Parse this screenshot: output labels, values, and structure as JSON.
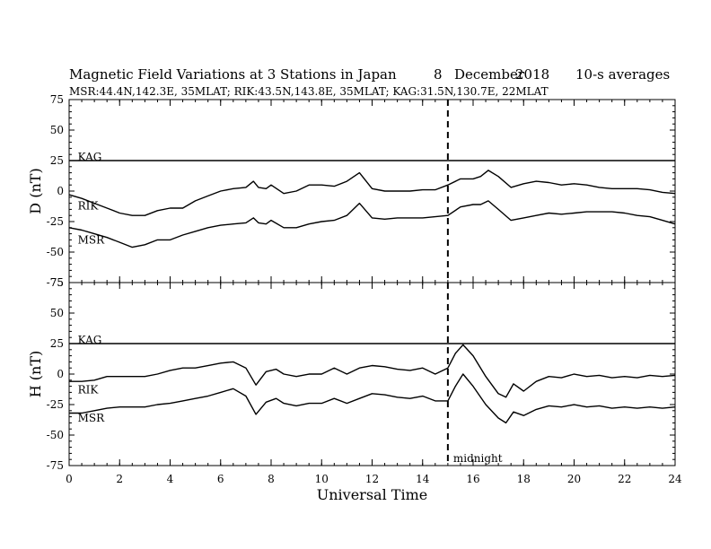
{
  "header": {
    "title": "Magnetic Field Variations at 3 Stations in Japan",
    "day": "8",
    "month": "December",
    "year": "2018",
    "averaging": "10-s averages",
    "stations_line": "MSR:44.4N,142.3E, 35MLAT;  RIK:43.5N,143.8E, 35MLAT;  KAG:31.5N,130.7E, 22MLAT"
  },
  "chart_data": [
    {
      "type": "line",
      "panel": "top",
      "ylabel": "D (nT)",
      "xlabel": "",
      "xlim": [
        0,
        24
      ],
      "ylim": [
        -75,
        75
      ],
      "xticks": [
        "0",
        "2",
        "4",
        "6",
        "8",
        "10",
        "12",
        "14",
        "16",
        "18",
        "20",
        "22",
        "24"
      ],
      "yticks": [
        "75",
        "50",
        "25",
        "0",
        "-25",
        "-50",
        "-75"
      ],
      "grid": false,
      "marker": {
        "x": 15,
        "style": "dashed"
      },
      "series": [
        {
          "name": "KAG",
          "label_x": 0.2,
          "label_y": 28,
          "x": [
            0,
            4,
            8,
            10,
            12,
            14,
            16,
            18,
            20,
            22,
            24
          ],
          "values": [
            25,
            25,
            25,
            25,
            25,
            25,
            25,
            25,
            25,
            25,
            25
          ]
        },
        {
          "name": "RIK",
          "label_x": 0.2,
          "label_y": -12,
          "x": [
            0,
            0.5,
            1,
            1.5,
            2,
            2.5,
            3,
            3.5,
            4,
            4.5,
            5,
            5.5,
            6,
            6.5,
            7,
            7.3,
            7.5,
            7.8,
            8,
            8.5,
            9,
            9.5,
            10,
            10.5,
            11,
            11.5,
            12,
            12.5,
            13,
            13.5,
            14,
            14.5,
            15,
            15.5,
            16,
            16.3,
            16.6,
            17,
            17.5,
            18,
            18.5,
            19,
            19.5,
            20,
            20.5,
            21,
            21.5,
            22,
            22.5,
            23,
            23.5,
            24
          ],
          "values": [
            -3,
            -6,
            -10,
            -14,
            -18,
            -20,
            -20,
            -16,
            -14,
            -14,
            -8,
            -4,
            0,
            2,
            3,
            8,
            3,
            2,
            5,
            -2,
            0,
            5,
            5,
            4,
            8,
            15,
            2,
            0,
            0,
            0,
            1,
            1,
            5,
            10,
            10,
            12,
            17,
            12,
            3,
            6,
            8,
            7,
            5,
            6,
            5,
            3,
            2,
            2,
            2,
            1,
            -1,
            -2
          ]
        },
        {
          "name": "MSR",
          "label_x": 0.2,
          "label_y": -40,
          "x": [
            0,
            0.5,
            1,
            1.5,
            2,
            2.5,
            3,
            3.5,
            4,
            4.5,
            5,
            5.5,
            6,
            6.5,
            7,
            7.3,
            7.5,
            7.8,
            8,
            8.5,
            9,
            9.5,
            10,
            10.5,
            11,
            11.5,
            12,
            12.5,
            13,
            13.5,
            14,
            14.5,
            15,
            15.5,
            16,
            16.3,
            16.6,
            17,
            17.5,
            18,
            18.5,
            19,
            19.5,
            20,
            20.5,
            21,
            21.5,
            22,
            22.5,
            23,
            23.5,
            24
          ],
          "values": [
            -30,
            -32,
            -35,
            -38,
            -42,
            -46,
            -44,
            -40,
            -40,
            -36,
            -33,
            -30,
            -28,
            -27,
            -26,
            -22,
            -26,
            -27,
            -24,
            -30,
            -30,
            -27,
            -25,
            -24,
            -20,
            -10,
            -22,
            -23,
            -22,
            -22,
            -22,
            -21,
            -20,
            -13,
            -11,
            -11,
            -8,
            -15,
            -24,
            -22,
            -20,
            -18,
            -19,
            -18,
            -17,
            -17,
            -17,
            -18,
            -20,
            -21,
            -24,
            -27
          ]
        }
      ]
    },
    {
      "type": "line",
      "panel": "bottom",
      "ylabel": "H (nT)",
      "xlabel": "Universal Time",
      "xlim": [
        0,
        24
      ],
      "ylim": [
        -75,
        75
      ],
      "xticks": [
        "0",
        "2",
        "4",
        "6",
        "8",
        "10",
        "12",
        "14",
        "16",
        "18",
        "20",
        "22",
        "24"
      ],
      "yticks": [
        "75",
        "50",
        "25",
        "0",
        "-25",
        "-50",
        "-75"
      ],
      "grid": false,
      "marker": {
        "x": 15,
        "style": "dashed",
        "label": "midnight"
      },
      "series": [
        {
          "name": "KAG",
          "label_x": 0.2,
          "label_y": 28,
          "x": [
            0,
            4,
            8,
            10,
            12,
            14,
            16,
            18,
            20,
            22,
            24
          ],
          "values": [
            25,
            25,
            25,
            25,
            25,
            25,
            25,
            25,
            25,
            25,
            25
          ]
        },
        {
          "name": "RIK",
          "label_x": 0.2,
          "label_y": -13,
          "x": [
            0,
            0.5,
            1,
            1.5,
            2,
            2.5,
            3,
            3.5,
            4,
            4.5,
            5,
            5.5,
            6,
            6.5,
            7,
            7.4,
            7.8,
            8.2,
            8.5,
            9,
            9.5,
            10,
            10.5,
            11,
            11.5,
            12,
            12.5,
            13,
            13.5,
            14,
            14.5,
            15,
            15.3,
            15.6,
            16,
            16.5,
            17,
            17.3,
            17.6,
            18,
            18.5,
            19,
            19.5,
            20,
            20.5,
            21,
            21.5,
            22,
            22.5,
            23,
            23.5,
            24
          ],
          "values": [
            -6,
            -6,
            -5,
            -2,
            -2,
            -2,
            -2,
            0,
            3,
            5,
            5,
            7,
            9,
            10,
            5,
            -9,
            2,
            4,
            0,
            -2,
            0,
            0,
            5,
            0,
            5,
            7,
            6,
            4,
            3,
            5,
            0,
            5,
            17,
            24,
            15,
            -2,
            -16,
            -19,
            -8,
            -14,
            -6,
            -2,
            -3,
            0,
            -2,
            -1,
            -3,
            -2,
            -3,
            -1,
            -2,
            -1
          ]
        },
        {
          "name": "MSR",
          "label_x": 0.2,
          "label_y": -36,
          "x": [
            0,
            0.5,
            1,
            1.5,
            2,
            2.5,
            3,
            3.5,
            4,
            4.5,
            5,
            5.5,
            6,
            6.5,
            7,
            7.4,
            7.8,
            8.2,
            8.5,
            9,
            9.5,
            10,
            10.5,
            11,
            11.5,
            12,
            12.5,
            13,
            13.5,
            14,
            14.5,
            15,
            15.3,
            15.6,
            16,
            16.5,
            17,
            17.3,
            17.6,
            18,
            18.5,
            19,
            19.5,
            20,
            20.5,
            21,
            21.5,
            22,
            22.5,
            23,
            23.5,
            24
          ],
          "values": [
            -32,
            -32,
            -30,
            -28,
            -27,
            -27,
            -27,
            -25,
            -24,
            -22,
            -20,
            -18,
            -15,
            -12,
            -18,
            -33,
            -23,
            -20,
            -24,
            -26,
            -24,
            -24,
            -20,
            -24,
            -20,
            -16,
            -17,
            -19,
            -20,
            -18,
            -22,
            -22,
            -10,
            0,
            -10,
            -25,
            -36,
            -40,
            -31,
            -34,
            -29,
            -26,
            -27,
            -25,
            -27,
            -26,
            -28,
            -27,
            -28,
            -27,
            -28,
            -27
          ]
        }
      ]
    }
  ]
}
